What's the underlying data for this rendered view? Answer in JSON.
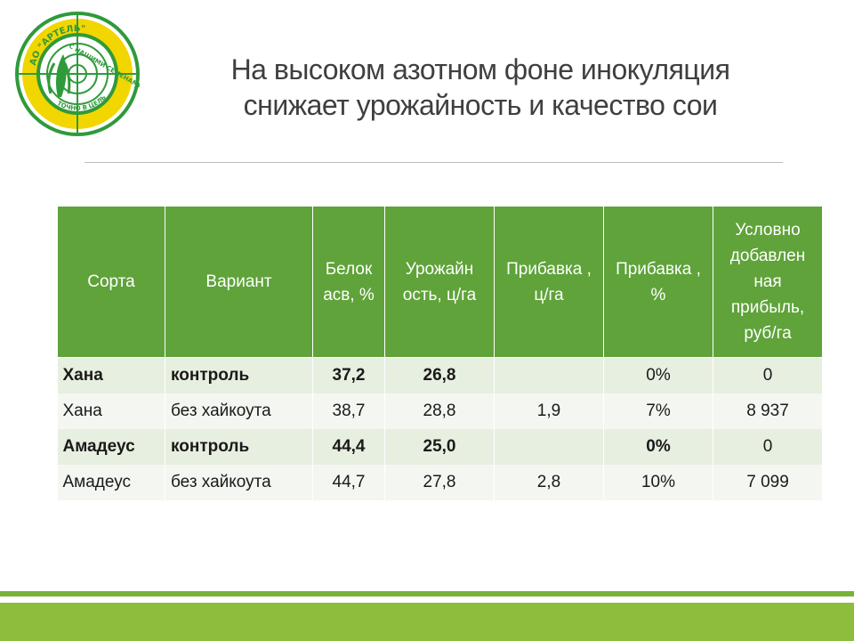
{
  "logo": {
    "top_text": "АО \"АРТЕЛЬ\"",
    "middle_text": "С НАШИМИ СЕМЕНАМИ",
    "bottom_text": "ТОЧНО В ЦЕЛЬ"
  },
  "title": {
    "line1": "На высоком азотном фоне инокуляция",
    "line2": "снижает урожайность и качество сои"
  },
  "table": {
    "headers": [
      "Сорта",
      "Вариант",
      "Белок асв, %",
      "Урожайн ость, ц/га",
      "Прибавка , ц/га",
      "Прибавка , %",
      "Условно добавлен ная прибыль, руб/га"
    ],
    "rows": [
      [
        "Хана",
        "контроль",
        "37,2",
        "26,8",
        "",
        "0%",
        "0"
      ],
      [
        "Хана",
        "без хайкоута",
        "38,7",
        "28,8",
        "1,9",
        "7%",
        "8 937"
      ],
      [
        "Амадеус",
        "контроль",
        "44,4",
        "25,0",
        "",
        "0%",
        "0"
      ],
      [
        "Амадеус",
        "без хайкоута",
        "44,7",
        "27,8",
        "2,8",
        "10%",
        "7 099"
      ]
    ]
  },
  "colors": {
    "header_green": "#5fa33a",
    "footer_green": "#8dbd3c",
    "logo_yellow": "#f2d600",
    "logo_green": "#2f9a3a"
  }
}
